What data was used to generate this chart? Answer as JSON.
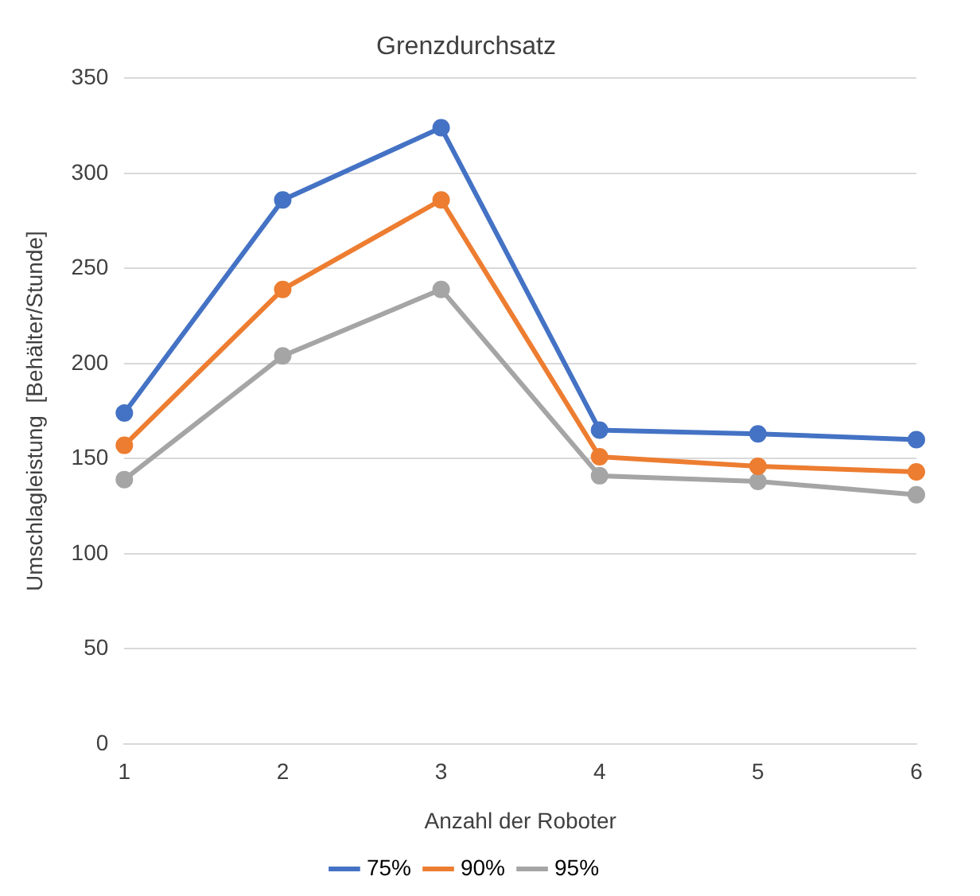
{
  "chart_data": {
    "type": "line",
    "title": "Grenzdurchsatz",
    "xlabel": "Anzahl der Roboter",
    "ylabel": "Umschlagleistung  [Behälter/Stunde]",
    "categories": [
      "1",
      "2",
      "3",
      "4",
      "5",
      "6"
    ],
    "series": [
      {
        "name": "75%",
        "color": "#4472c4",
        "values": [
          174,
          286,
          324,
          165,
          163,
          160
        ]
      },
      {
        "name": "90%",
        "color": "#ed7d31",
        "values": [
          157,
          239,
          286,
          151,
          146,
          143
        ]
      },
      {
        "name": "95%",
        "color": "#a5a5a5",
        "values": [
          139,
          204,
          239,
          141,
          138,
          131
        ]
      }
    ],
    "ylim": [
      0,
      350
    ],
    "yticks": [
      0,
      50,
      100,
      150,
      200,
      250,
      300,
      350
    ],
    "grid": "y",
    "legend": "bottom",
    "marker": "circle",
    "line_style": "solid"
  }
}
